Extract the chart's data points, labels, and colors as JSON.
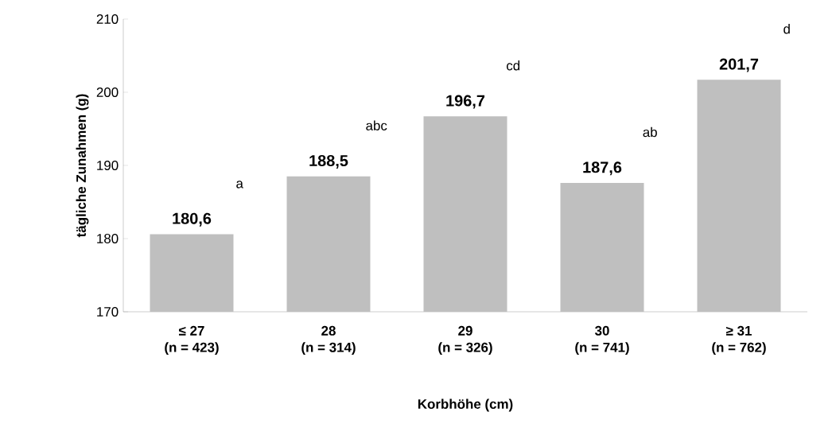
{
  "chart_data": {
    "type": "bar",
    "xlabel": "Korbhöhe (cm)",
    "ylabel": "tägliche Zunahmen (g)",
    "categories": [
      "≤ 27\n(n = 423)",
      "28\n(n = 314)",
      "29\n(n = 326)",
      "30\n(n = 741)",
      "≥ 31\n(n = 762)"
    ],
    "values": [
      180.6,
      188.5,
      196.7,
      187.6,
      201.7
    ],
    "value_labels": [
      "180,6",
      "188,5",
      "196,7",
      "187,6",
      "201,7"
    ],
    "color": "#bfbfbf",
    "ylim": [
      170,
      210
    ],
    "yticks": [
      170,
      180,
      190,
      200,
      210
    ],
    "grid": false,
    "annotations": [
      "a",
      "abc",
      "cd",
      "ab",
      "d"
    ]
  }
}
